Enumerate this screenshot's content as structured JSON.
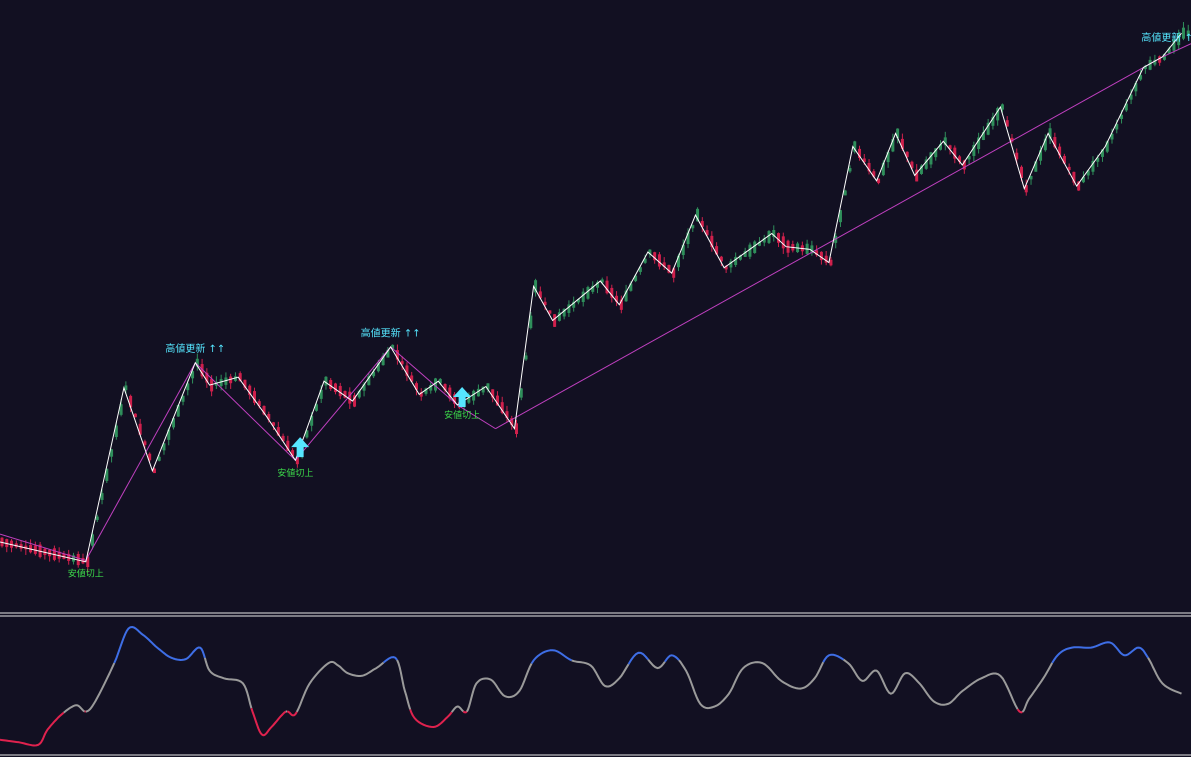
{
  "colors": {
    "background": "#121022",
    "bull_candle": "#2f8f5b",
    "bear_candle": "#d0204c",
    "zigzag": "#ffffff",
    "trendline": "#c040c0",
    "label_high": "#56e6ff",
    "label_switch": "#3cdc4a",
    "arrow": "#56e6ff",
    "panel_divider": "#e6e6e6",
    "osc_red": "#e0224e",
    "osc_grey": "#9a9a9a",
    "osc_blue": "#3e6ee6"
  },
  "chart_data": [
    {
      "type": "candlestick",
      "name_on_chart": "",
      "ylim": [
        0,
        100
      ],
      "candles_count": 250,
      "zigzag": [
        [
          0,
          22.0
        ],
        [
          18,
          14.5
        ],
        [
          26,
          80.5
        ],
        [
          32,
          49.0
        ],
        [
          41,
          90.0
        ],
        [
          44,
          81.5
        ],
        [
          50,
          84.5
        ],
        [
          56,
          69.5
        ],
        [
          62,
          53.0
        ],
        [
          68,
          83.0
        ],
        [
          74,
          75.5
        ],
        [
          82,
          96.0
        ],
        [
          88,
          78.0
        ],
        [
          92,
          83.0
        ],
        [
          96,
          74.0
        ],
        [
          102,
          81.0
        ],
        [
          108,
          65.0
        ],
        [
          112,
          119.0
        ],
        [
          116,
          106.0
        ],
        [
          126,
          121.0
        ],
        [
          130,
          112.0
        ],
        [
          136,
          132.0
        ],
        [
          141,
          124.0
        ],
        [
          146,
          146.0
        ],
        [
          152,
          126.0
        ],
        [
          162,
          139.0
        ],
        [
          165,
          134.0
        ],
        [
          170,
          133.0
        ],
        [
          174,
          128.0
        ],
        [
          179,
          172.0
        ],
        [
          184,
          159.0
        ],
        [
          188,
          177.0
        ],
        [
          192,
          161.0
        ],
        [
          198,
          174.0
        ],
        [
          202,
          165.0
        ],
        [
          210,
          187.0
        ],
        [
          215,
          156.0
        ],
        [
          220,
          177.0
        ],
        [
          226,
          157.0
        ],
        [
          232,
          172.0
        ],
        [
          240,
          202.0
        ],
        [
          244,
          206.0
        ],
        [
          248,
          215.0
        ]
      ],
      "trendlines": [
        [
          [
            0,
            25.0
          ],
          [
            18,
            15.0
          ]
        ],
        [
          [
            18,
            15.0
          ],
          [
            41,
            90.0
          ]
        ],
        [
          [
            41,
            90.0
          ],
          [
            62,
            53.0
          ]
        ],
        [
          [
            62,
            53.0
          ],
          [
            82,
            96.0
          ]
        ],
        [
          [
            82,
            96.0
          ],
          [
            96,
            74.0
          ]
        ],
        [
          [
            96,
            74.0
          ],
          [
            104,
            65.0
          ]
        ],
        [
          [
            104,
            65.0
          ],
          [
            244,
            206.0
          ]
        ],
        [
          [
            244,
            206.0
          ],
          [
            250,
            211.0
          ]
        ]
      ],
      "annotations": [
        {
          "text": "高値更新 ↑↑",
          "x": 41,
          "y": 94,
          "kind": "high"
        },
        {
          "text": "高値更新 ↑↑",
          "x": 82,
          "y": 100,
          "kind": "high"
        },
        {
          "text": "高値更新 ↑",
          "x": 245,
          "y": 212,
          "kind": "high"
        },
        {
          "text": "安値切上",
          "x": 18,
          "y": 9,
          "kind": "switch"
        },
        {
          "text": "安値切上",
          "x": 62,
          "y": 47,
          "kind": "switch"
        },
        {
          "text": "安値切上",
          "x": 97,
          "y": 69,
          "kind": "switch"
        }
      ],
      "arrows": [
        {
          "x": 63,
          "y": 58
        },
        {
          "x": 97,
          "y": 77
        }
      ]
    },
    {
      "type": "line",
      "name_on_chart": "",
      "ylim": [
        0,
        100
      ],
      "series_note": "oscillator colored by zone",
      "points": [
        [
          0,
          8
        ],
        [
          4,
          6
        ],
        [
          8,
          4
        ],
        [
          10,
          16
        ],
        [
          13,
          28
        ],
        [
          16,
          35
        ],
        [
          18,
          30
        ],
        [
          20,
          38
        ],
        [
          24,
          68
        ],
        [
          27,
          95
        ],
        [
          30,
          90
        ],
        [
          33,
          80
        ],
        [
          36,
          72
        ],
        [
          39,
          71
        ],
        [
          42,
          80
        ],
        [
          44,
          62
        ],
        [
          47,
          56
        ],
        [
          51,
          52
        ],
        [
          53,
          30
        ],
        [
          55,
          12
        ],
        [
          57,
          18
        ],
        [
          60,
          30
        ],
        [
          62,
          28
        ],
        [
          65,
          52
        ],
        [
          69,
          68
        ],
        [
          71,
          66
        ],
        [
          73,
          60
        ],
        [
          76,
          58
        ],
        [
          79,
          64
        ],
        [
          83,
          72
        ],
        [
          85,
          46
        ],
        [
          87,
          25
        ],
        [
          91,
          18
        ],
        [
          94,
          26
        ],
        [
          96,
          34
        ],
        [
          98,
          30
        ],
        [
          100,
          52
        ],
        [
          103,
          55
        ],
        [
          106,
          42
        ],
        [
          109,
          46
        ],
        [
          112,
          70
        ],
        [
          116,
          78
        ],
        [
          120,
          70
        ],
        [
          124,
          66
        ],
        [
          127,
          50
        ],
        [
          130,
          56
        ],
        [
          134,
          76
        ],
        [
          138,
          64
        ],
        [
          141,
          74
        ],
        [
          144,
          62
        ],
        [
          147,
          36
        ],
        [
          150,
          34
        ],
        [
          153,
          44
        ],
        [
          156,
          64
        ],
        [
          160,
          68
        ],
        [
          164,
          54
        ],
        [
          168,
          48
        ],
        [
          171,
          56
        ],
        [
          174,
          74
        ],
        [
          178,
          68
        ],
        [
          181,
          54
        ],
        [
          184,
          62
        ],
        [
          187,
          44
        ],
        [
          190,
          60
        ],
        [
          193,
          52
        ],
        [
          196,
          38
        ],
        [
          199,
          36
        ],
        [
          202,
          46
        ],
        [
          206,
          56
        ],
        [
          210,
          58
        ],
        [
          214,
          30
        ],
        [
          216,
          40
        ],
        [
          219,
          56
        ],
        [
          222,
          74
        ],
        [
          225,
          80
        ],
        [
          229,
          80
        ],
        [
          233,
          84
        ],
        [
          236,
          74
        ],
        [
          239,
          80
        ],
        [
          241,
          72
        ],
        [
          244,
          52
        ],
        [
          248,
          44
        ]
      ]
    }
  ]
}
